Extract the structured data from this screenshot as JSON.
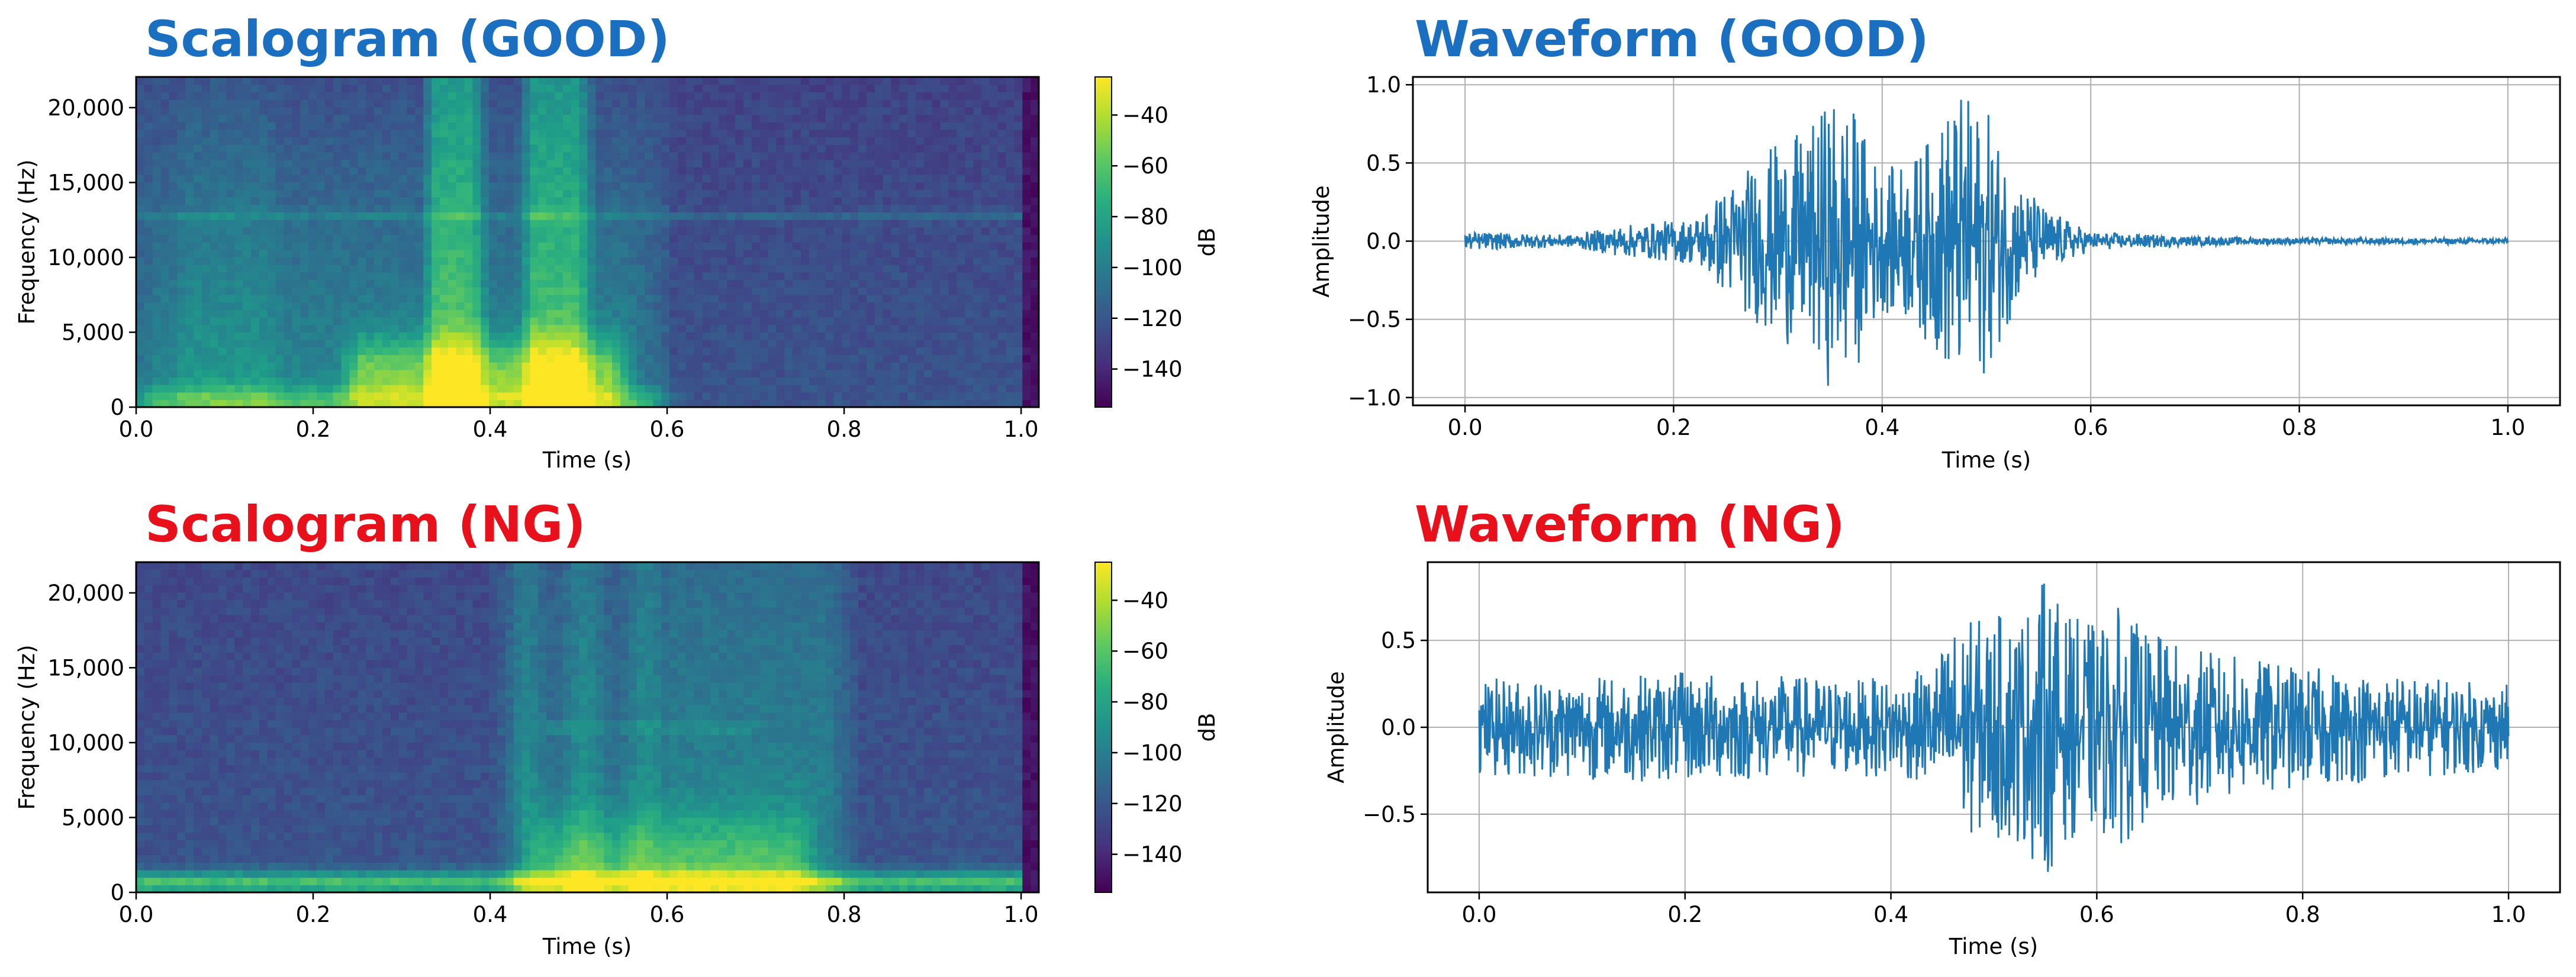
{
  "colors": {
    "good_title": "#1a6fc0",
    "ng_title": "#e8101a",
    "line": "#1f77b4",
    "grid": "#b0b0b0"
  },
  "colormap": "viridis",
  "chart_data": [
    {
      "id": "scalogram-good",
      "type": "heatmap",
      "title": "Scalogram (GOOD)",
      "title_color": "#1a6fc0",
      "xlabel": "Time (s)",
      "ylabel": "Frequency (Hz)",
      "xlim": [
        0.0,
        1.02
      ],
      "ylim": [
        0,
        22050
      ],
      "xticks": [
        0.0,
        0.2,
        0.4,
        0.6,
        0.8,
        1.0
      ],
      "xtick_labels": [
        "0.0",
        "0.2",
        "0.4",
        "0.6",
        "0.8",
        "1.0"
      ],
      "yticks": [
        0,
        5000,
        10000,
        15000,
        20000
      ],
      "ytick_labels": [
        "0",
        "5,000",
        "10,000",
        "15,000",
        "20,000"
      ],
      "colorbar": {
        "label": "dB",
        "range": [
          -155,
          -25
        ],
        "ticks": [
          -40,
          -60,
          -80,
          -100,
          -120,
          -140
        ],
        "tick_labels": [
          "−40",
          "−60",
          "−80",
          "−100",
          "−120",
          "−140"
        ]
      },
      "energy_regions": [
        {
          "t_start": 0.24,
          "t_end": 0.36,
          "f_max": 5000,
          "level_db": -40
        },
        {
          "t_start": 0.32,
          "t_end": 0.39,
          "f_max": 22050,
          "level_db": -60
        },
        {
          "t_start": 0.44,
          "t_end": 0.51,
          "f_max": 22050,
          "level_db": -60
        },
        {
          "t_start": 0.0,
          "t_end": 0.6,
          "f_max": 2500,
          "level_db": -50
        }
      ],
      "tonal_line_hz": 12800
    },
    {
      "id": "waveform-good",
      "type": "line",
      "title": "Waveform (GOOD)",
      "title_color": "#1a6fc0",
      "xlabel": "Time (s)",
      "ylabel": "Amplitude",
      "xlim": [
        -0.05,
        1.05
      ],
      "ylim": [
        -1.05,
        1.05
      ],
      "xticks": [
        0.0,
        0.2,
        0.4,
        0.6,
        0.8,
        1.0
      ],
      "xtick_labels": [
        "0.0",
        "0.2",
        "0.4",
        "0.6",
        "0.8",
        "1.0"
      ],
      "yticks": [
        1.0,
        0.5,
        0.0,
        -0.5,
        -1.0
      ],
      "ytick_labels": [
        "1.0",
        "0.5",
        "0.0",
        "−0.5",
        "−1.0"
      ],
      "grid": true,
      "series": [
        {
          "name": "amplitude",
          "x": [
            0.0,
            0.1,
            0.15,
            0.22,
            0.25,
            0.3,
            0.33,
            0.35,
            0.37,
            0.4,
            0.43,
            0.45,
            0.47,
            0.5,
            0.53,
            0.56,
            0.6,
            0.7,
            0.8,
            1.0
          ],
          "envelope": [
            0.06,
            0.04,
            0.1,
            0.15,
            0.35,
            0.65,
            0.7,
            0.95,
            0.9,
            0.45,
            0.55,
            0.7,
            0.97,
            0.85,
            0.4,
            0.2,
            0.06,
            0.03,
            0.02,
            0.02
          ]
        }
      ]
    },
    {
      "id": "scalogram-ng",
      "type": "heatmap",
      "title": "Scalogram (NG)",
      "title_color": "#e8101a",
      "xlabel": "Time (s)",
      "ylabel": "Frequency (Hz)",
      "xlim": [
        0.0,
        1.02
      ],
      "ylim": [
        0,
        22050
      ],
      "xticks": [
        0.0,
        0.2,
        0.4,
        0.6,
        0.8,
        1.0
      ],
      "xtick_labels": [
        "0.0",
        "0.2",
        "0.4",
        "0.6",
        "0.8",
        "1.0"
      ],
      "yticks": [
        0,
        5000,
        10000,
        15000,
        20000
      ],
      "ytick_labels": [
        "0",
        "5,000",
        "10,000",
        "15,000",
        "20,000"
      ],
      "colorbar": {
        "label": "dB",
        "range": [
          -155,
          -25
        ],
        "ticks": [
          -40,
          -60,
          -80,
          -100,
          -120,
          -140
        ],
        "tick_labels": [
          "−40",
          "−60",
          "−80",
          "−100",
          "−120",
          "−140"
        ]
      },
      "energy_regions": [
        {
          "t_start": 0.42,
          "t_end": 0.8,
          "f_max": 22050,
          "level_db": -70
        },
        {
          "t_start": 0.45,
          "t_end": 0.75,
          "f_max": 6000,
          "level_db": -45
        },
        {
          "t_start": 0.0,
          "t_end": 1.02,
          "f_max": 1500,
          "level_db": -45
        }
      ],
      "tonal_line_hz": 11000
    },
    {
      "id": "waveform-ng",
      "type": "line",
      "title": "Waveform (NG)",
      "title_color": "#e8101a",
      "xlabel": "Time (s)",
      "ylabel": "Amplitude",
      "xlim": [
        -0.05,
        1.05
      ],
      "ylim": [
        -0.95,
        0.95
      ],
      "xticks": [
        0.0,
        0.2,
        0.4,
        0.6,
        0.8,
        1.0
      ],
      "xtick_labels": [
        "0.0",
        "0.2",
        "0.4",
        "0.6",
        "0.8",
        "1.0"
      ],
      "yticks": [
        0.5,
        0.0,
        -0.5
      ],
      "ytick_labels": [
        "0.5",
        "0.0",
        "−0.5"
      ],
      "grid": true,
      "series": [
        {
          "name": "amplitude",
          "x": [
            0.0,
            0.1,
            0.2,
            0.3,
            0.4,
            0.44,
            0.46,
            0.5,
            0.53,
            0.55,
            0.57,
            0.6,
            0.62,
            0.65,
            0.7,
            0.8,
            0.9,
            1.0
          ],
          "envelope": [
            0.28,
            0.3,
            0.32,
            0.3,
            0.28,
            0.35,
            0.6,
            0.65,
            0.7,
            0.88,
            0.65,
            0.6,
            0.7,
            0.55,
            0.45,
            0.35,
            0.3,
            0.25
          ]
        }
      ]
    }
  ]
}
